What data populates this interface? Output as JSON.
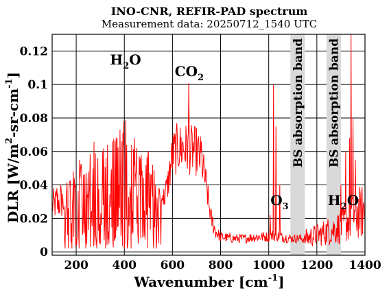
{
  "chart_data": {
    "type": "line",
    "title": "INO-CNR, REFIR-PAD spectrum",
    "subtitle": "Measurement data: 20250712_1540 UTC",
    "xlabel": {
      "base": "Wavenumber [cm",
      "sup": "-1",
      "close": "]"
    },
    "ylabel": {
      "a": "DLR [W/m",
      "sup1": "2",
      "b": "-sr-cm",
      "sup2": "-1",
      "c": "]"
    },
    "xlim": [
      100,
      1400
    ],
    "ylim": [
      -0.002,
      0.13
    ],
    "xticks": [
      200,
      400,
      600,
      800,
      1000,
      1200,
      1400
    ],
    "yticks": [
      0,
      0.02,
      0.04,
      0.06,
      0.08,
      0.1,
      0.12
    ],
    "ytick_labels": [
      "0",
      "0.02",
      "0.04",
      "0.06",
      "0.08",
      "0.1",
      "0.12"
    ],
    "grid": true,
    "series_color": "#ff0000",
    "band_color": "#d9d9d9",
    "bands": [
      {
        "label": "BS absorption band",
        "x": [
          1090,
          1150
        ]
      },
      {
        "label": "BS absorption band",
        "x": [
          1240,
          1300
        ]
      }
    ],
    "annotations": [
      {
        "base": "H",
        "sub": "2",
        "tail": "O",
        "x": 405,
        "y": 0.112
      },
      {
        "base": "CO",
        "sub": "2",
        "tail": "",
        "x": 670,
        "y": 0.105
      },
      {
        "base": "O",
        "sub": "3",
        "tail": "",
        "x": 1045,
        "y": 0.028
      },
      {
        "base": "H",
        "sub": "2",
        "tail": "O",
        "x": 1310,
        "y": 0.028
      }
    ],
    "envelope": [
      [
        100,
        0.028
      ],
      [
        150,
        0.03
      ],
      [
        180,
        0.036
      ],
      [
        200,
        0.036
      ],
      [
        250,
        0.04
      ],
      [
        300,
        0.046
      ],
      [
        350,
        0.05
      ],
      [
        400,
        0.054
      ],
      [
        450,
        0.052
      ],
      [
        500,
        0.04
      ],
      [
        550,
        0.025
      ],
      [
        580,
        0.04
      ],
      [
        600,
        0.058
      ],
      [
        620,
        0.062
      ],
      [
        650,
        0.062
      ],
      [
        700,
        0.06
      ],
      [
        720,
        0.055
      ],
      [
        740,
        0.04
      ],
      [
        760,
        0.02
      ],
      [
        780,
        0.012
      ],
      [
        800,
        0.009
      ],
      [
        850,
        0.008
      ],
      [
        900,
        0.008
      ],
      [
        950,
        0.009
      ],
      [
        1000,
        0.009
      ],
      [
        1020,
        0.01
      ],
      [
        1050,
        0.009
      ],
      [
        1090,
        0.008
      ],
      [
        1150,
        0.008
      ],
      [
        1200,
        0.01
      ],
      [
        1240,
        0.012
      ],
      [
        1300,
        0.015
      ],
      [
        1330,
        0.018
      ],
      [
        1360,
        0.022
      ],
      [
        1400,
        0.025
      ]
    ],
    "spikes": [
      [
        120,
        0.038
      ],
      [
        135,
        0.04
      ],
      [
        160,
        0.036
      ],
      [
        175,
        0.042
      ],
      [
        195,
        0.04
      ],
      [
        215,
        0.044
      ],
      [
        230,
        0.046
      ],
      [
        250,
        0.048
      ],
      [
        270,
        0.05
      ],
      [
        290,
        0.056
      ],
      [
        310,
        0.06
      ],
      [
        330,
        0.064
      ],
      [
        350,
        0.066
      ],
      [
        370,
        0.068
      ],
      [
        390,
        0.066
      ],
      [
        410,
        0.064
      ],
      [
        430,
        0.064
      ],
      [
        450,
        0.062
      ],
      [
        470,
        0.058
      ],
      [
        490,
        0.052
      ],
      [
        510,
        0.046
      ],
      [
        530,
        0.04
      ],
      [
        560,
        0.034
      ],
      [
        668,
        0.101
      ],
      [
        720,
        0.066
      ],
      [
        1005,
        0.022
      ],
      [
        1020,
        0.1
      ],
      [
        1030,
        0.075
      ],
      [
        1045,
        0.04
      ],
      [
        1300,
        0.04
      ],
      [
        1320,
        0.06
      ],
      [
        1335,
        0.068
      ],
      [
        1342,
        0.13
      ],
      [
        1350,
        0.08
      ],
      [
        1360,
        0.055
      ],
      [
        1380,
        0.035
      ]
    ]
  }
}
